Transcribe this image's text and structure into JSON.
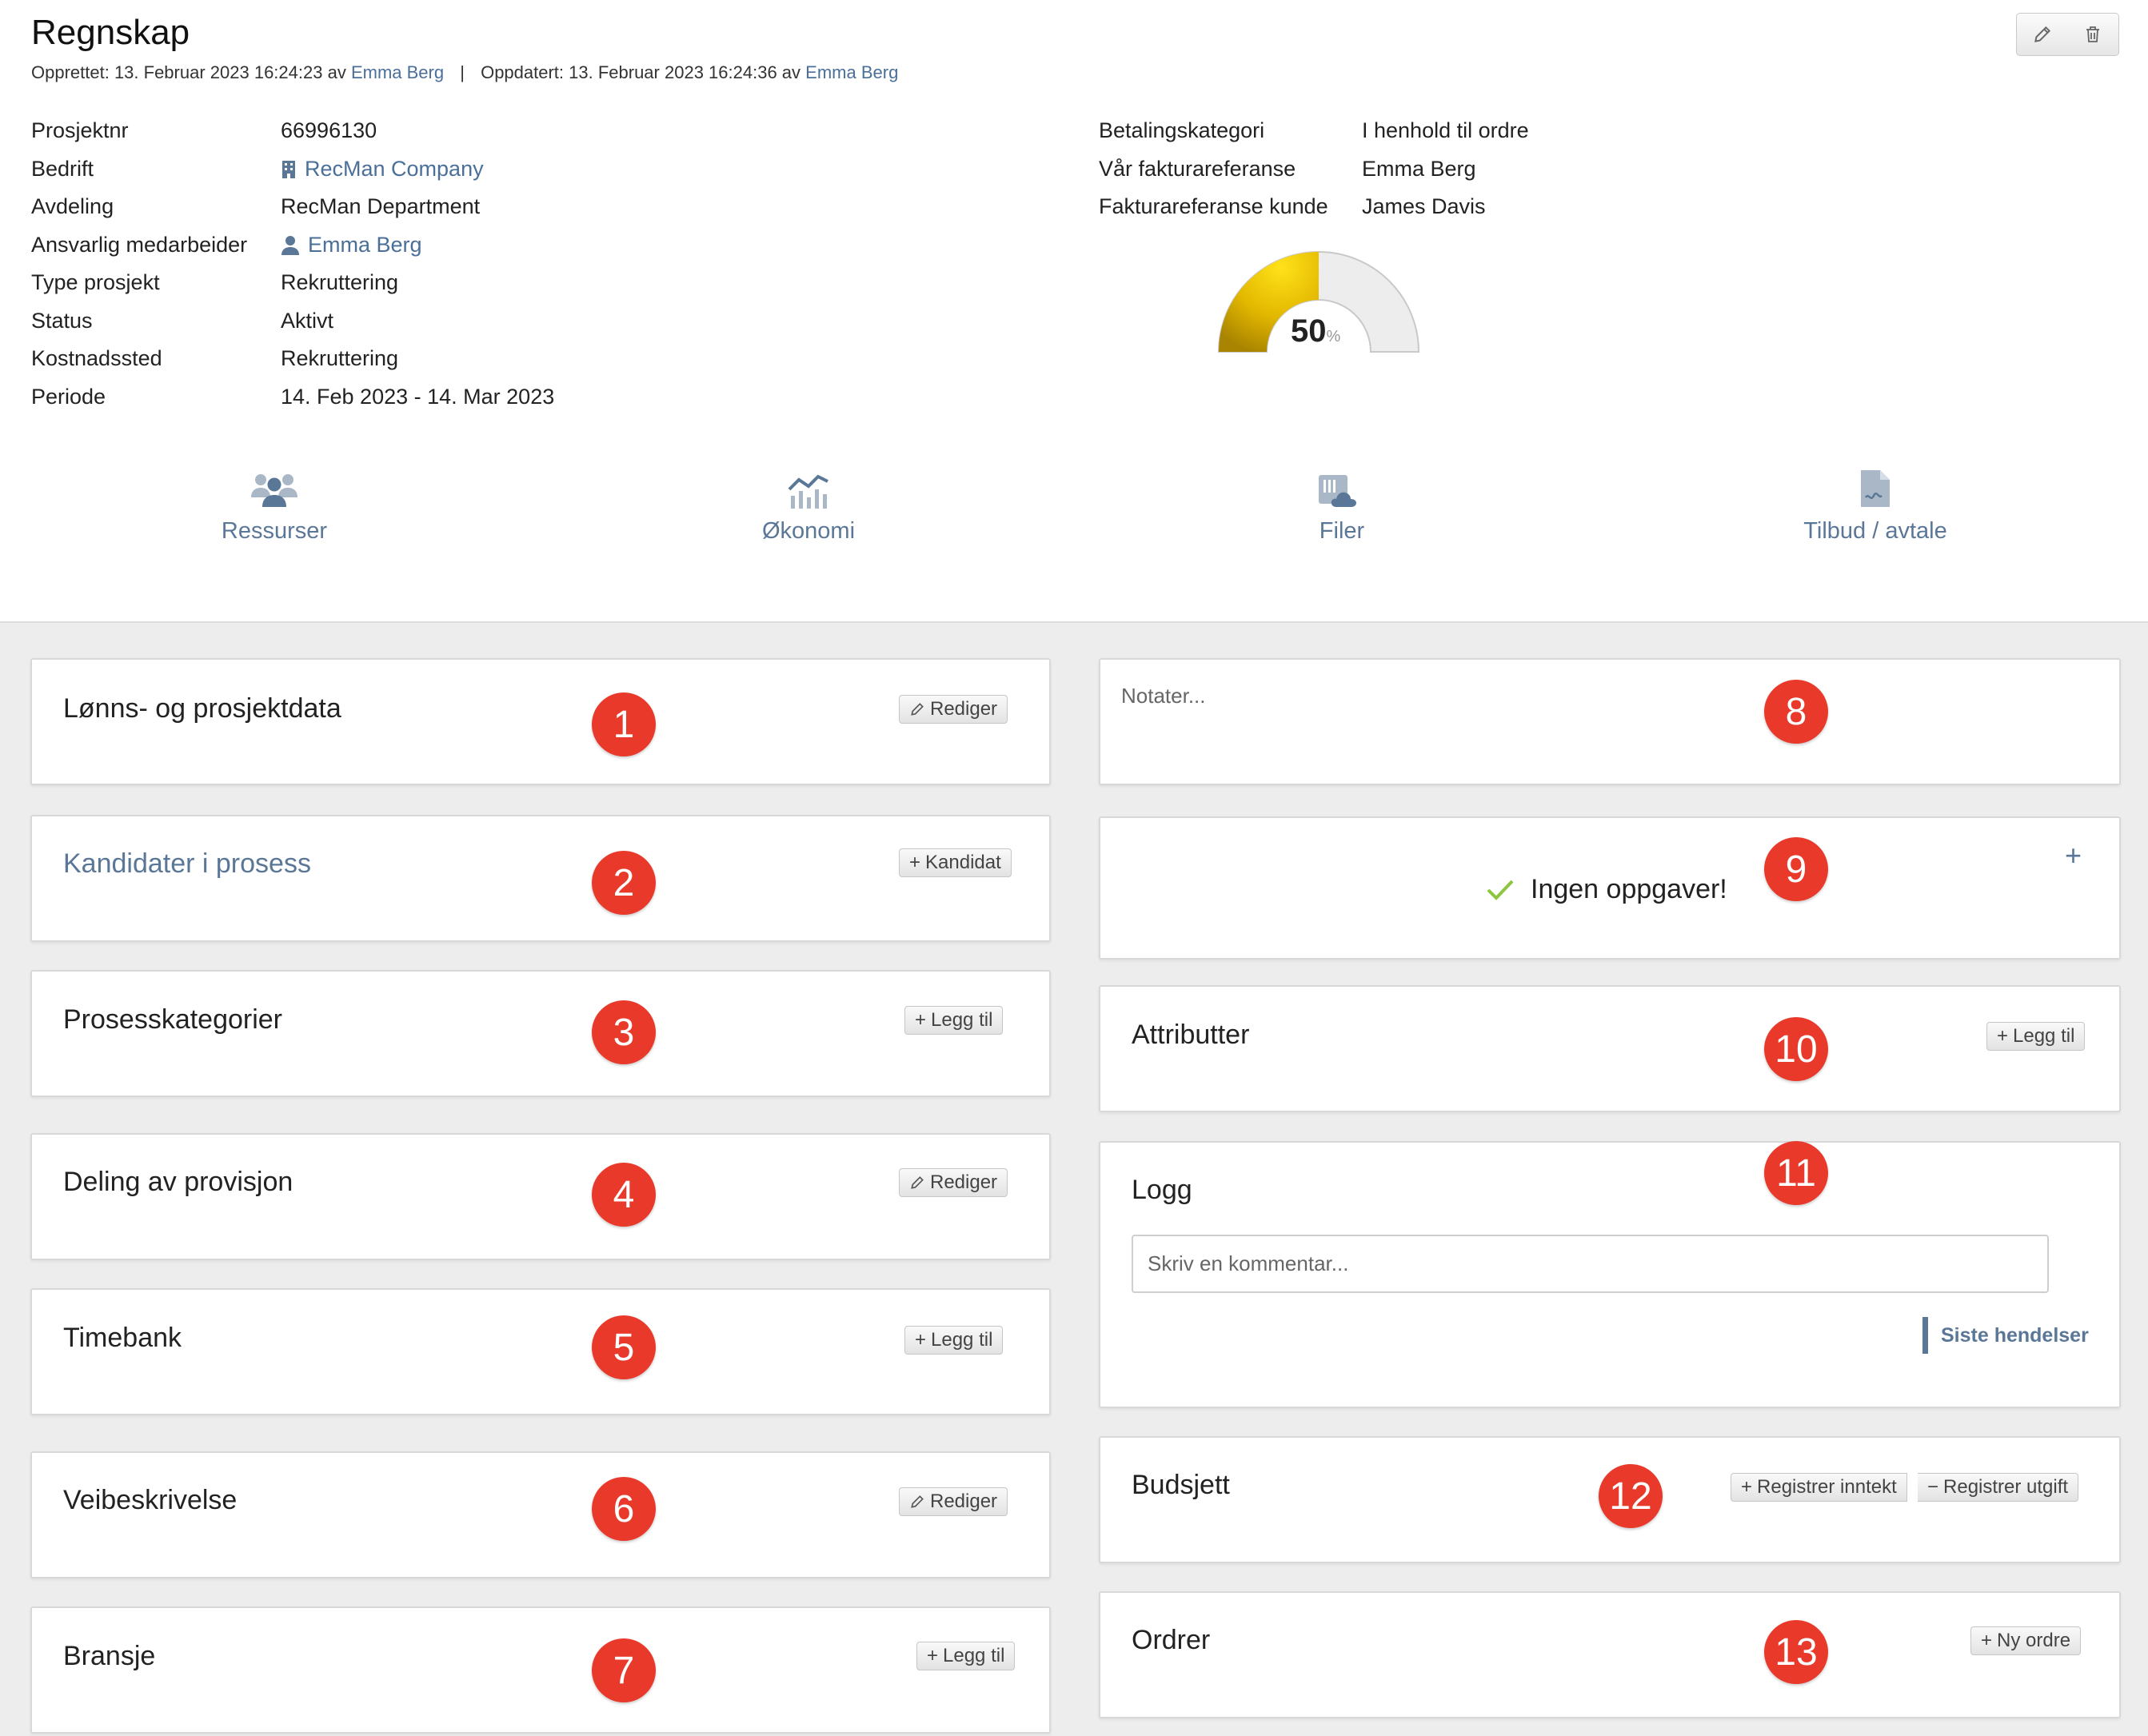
{
  "header": {
    "title": "Regnskap",
    "created_label": "Opprettet: 13. Februar 2023 16:24:23 av",
    "created_by": "Emma Berg",
    "separator": "|",
    "updated_label": "Oppdatert: 13. Februar 2023 16:24:36 av",
    "updated_by": "Emma Berg"
  },
  "info_left": [
    {
      "label": "Prosjektnr",
      "value": "66996130"
    },
    {
      "label": "Bedrift",
      "value": "RecMan Company"
    },
    {
      "label": "Avdeling",
      "value": "RecMan Department"
    },
    {
      "label": "Ansvarlig medarbeider",
      "value": "Emma Berg"
    },
    {
      "label": "Type prosjekt",
      "value": "Rekruttering"
    },
    {
      "label": "Status",
      "value": "Aktivt"
    },
    {
      "label": "Kostnadssted",
      "value": "Rekruttering"
    },
    {
      "label": "Periode",
      "value": "14. Feb 2023 - 14. Mar 2023"
    }
  ],
  "info_right": [
    {
      "label": "Betalingskategori",
      "value": "I henhold til ordre"
    },
    {
      "label": "Vår fakturareferanse",
      "value": "Emma Berg"
    },
    {
      "label": "Fakturareferanse kunde",
      "value": "James Davis"
    }
  ],
  "progress": {
    "value": "50",
    "unit": "%",
    "fraction": 0.5,
    "fill_color": "#d9ad00",
    "track_color": "#ededed"
  },
  "tabs": [
    {
      "label": "Ressurser",
      "icon": "users-icon"
    },
    {
      "label": "Økonomi",
      "icon": "chart-icon"
    },
    {
      "label": "Filer",
      "icon": "files-cloud-icon"
    },
    {
      "label": "Tilbud / avtale",
      "icon": "document-icon"
    }
  ],
  "left_cards": [
    {
      "title": "Lønns- og prosjektdata",
      "button": "Rediger",
      "badge": "1"
    },
    {
      "title": "Kandidater i prosess",
      "button": "Kandidat",
      "badge": "2"
    },
    {
      "title": "Prosesskategorier",
      "button": "Legg til",
      "badge": "3"
    },
    {
      "title": "Deling av provisjon",
      "button": "Rediger",
      "badge": "4"
    },
    {
      "title": "Timebank",
      "button": "Legg til",
      "badge": "5"
    },
    {
      "title": "Veibeskrivelse",
      "button": "Rediger",
      "badge": "6"
    },
    {
      "title": "Bransje",
      "button": "Legg til",
      "badge": "7"
    }
  ],
  "notes": {
    "placeholder": "Notater...",
    "badge": "8"
  },
  "tasks": {
    "empty_text": "Ingen oppgaver!",
    "badge": "9",
    "add": "+"
  },
  "attributes": {
    "title": "Attributter",
    "button": "Legg til",
    "badge": "10"
  },
  "log": {
    "title": "Logg",
    "placeholder": "Skriv en kommentar...",
    "events_label": "Siste hendelser",
    "badge": "11"
  },
  "budget": {
    "title": "Budsjett",
    "income_button": "Registrer inntekt",
    "expense_button": "Registrer utgift",
    "badge": "12"
  },
  "orders": {
    "title": "Ordrer",
    "button": "Ny ordre",
    "badge": "13"
  },
  "colors": {
    "accent": "#5b7798",
    "link": "#4a6f99",
    "badge": "#e8392b",
    "check": "#8cc63f"
  }
}
